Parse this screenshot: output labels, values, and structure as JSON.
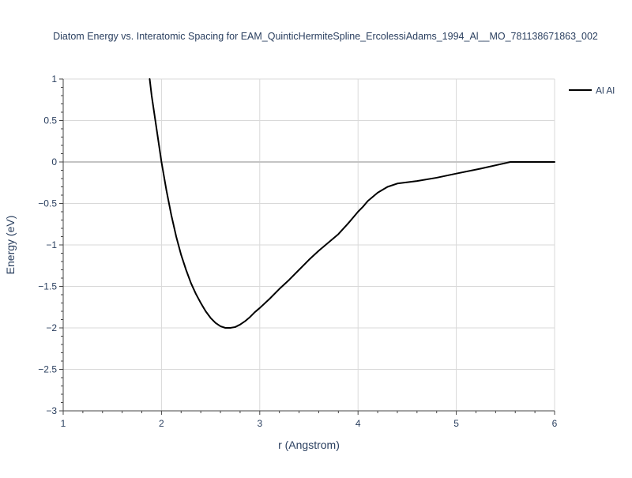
{
  "chart_data": {
    "type": "line",
    "title": "Diatom Energy vs. Interatomic Spacing for EAM_QuinticHermiteSpline_ErcolessiAdams_1994_Al__MO_781138671863_002",
    "xlabel": "r (Angstrom)",
    "ylabel": "Energy (eV)",
    "xlim": [
      1,
      6
    ],
    "ylim": [
      -3,
      1
    ],
    "x_ticks": [
      1,
      2,
      3,
      4,
      5,
      6
    ],
    "y_ticks": [
      1,
      0.5,
      0,
      -0.5,
      -1,
      -1.5,
      -2,
      -2.5,
      -3
    ],
    "x_tick_labels": [
      "1",
      "2",
      "3",
      "4",
      "5",
      "6"
    ],
    "y_tick_labels": [
      "1",
      "0.5",
      "0",
      "−0.5",
      "−1",
      "−1.5",
      "−2",
      "−2.5",
      "−3"
    ],
    "grid": true,
    "legend_position": "top-right",
    "series": [
      {
        "name": "Al Al",
        "color": "#000000",
        "x": [
          1.88,
          1.9,
          1.95,
          2.0,
          2.05,
          2.1,
          2.15,
          2.2,
          2.25,
          2.3,
          2.35,
          2.4,
          2.45,
          2.5,
          2.55,
          2.6,
          2.65,
          2.7,
          2.75,
          2.8,
          2.85,
          2.9,
          2.95,
          3.0,
          3.1,
          3.2,
          3.3,
          3.4,
          3.5,
          3.6,
          3.7,
          3.8,
          3.9,
          3.95,
          4.0,
          4.05,
          4.1,
          4.15,
          4.2,
          4.3,
          4.4,
          4.6,
          4.8,
          5.0,
          5.25,
          5.55,
          5.7,
          6.0
        ],
        "y": [
          1.0,
          0.8,
          0.4,
          0.0,
          -0.34,
          -0.64,
          -0.9,
          -1.12,
          -1.3,
          -1.46,
          -1.59,
          -1.7,
          -1.8,
          -1.88,
          -1.94,
          -1.98,
          -2.0,
          -2.0,
          -1.99,
          -1.96,
          -1.92,
          -1.87,
          -1.81,
          -1.76,
          -1.65,
          -1.53,
          -1.42,
          -1.3,
          -1.18,
          -1.07,
          -0.97,
          -0.87,
          -0.74,
          -0.67,
          -0.6,
          -0.54,
          -0.47,
          -0.42,
          -0.37,
          -0.3,
          -0.26,
          -0.23,
          -0.19,
          -0.14,
          -0.08,
          0.0,
          0.0,
          0.0
        ]
      }
    ]
  }
}
